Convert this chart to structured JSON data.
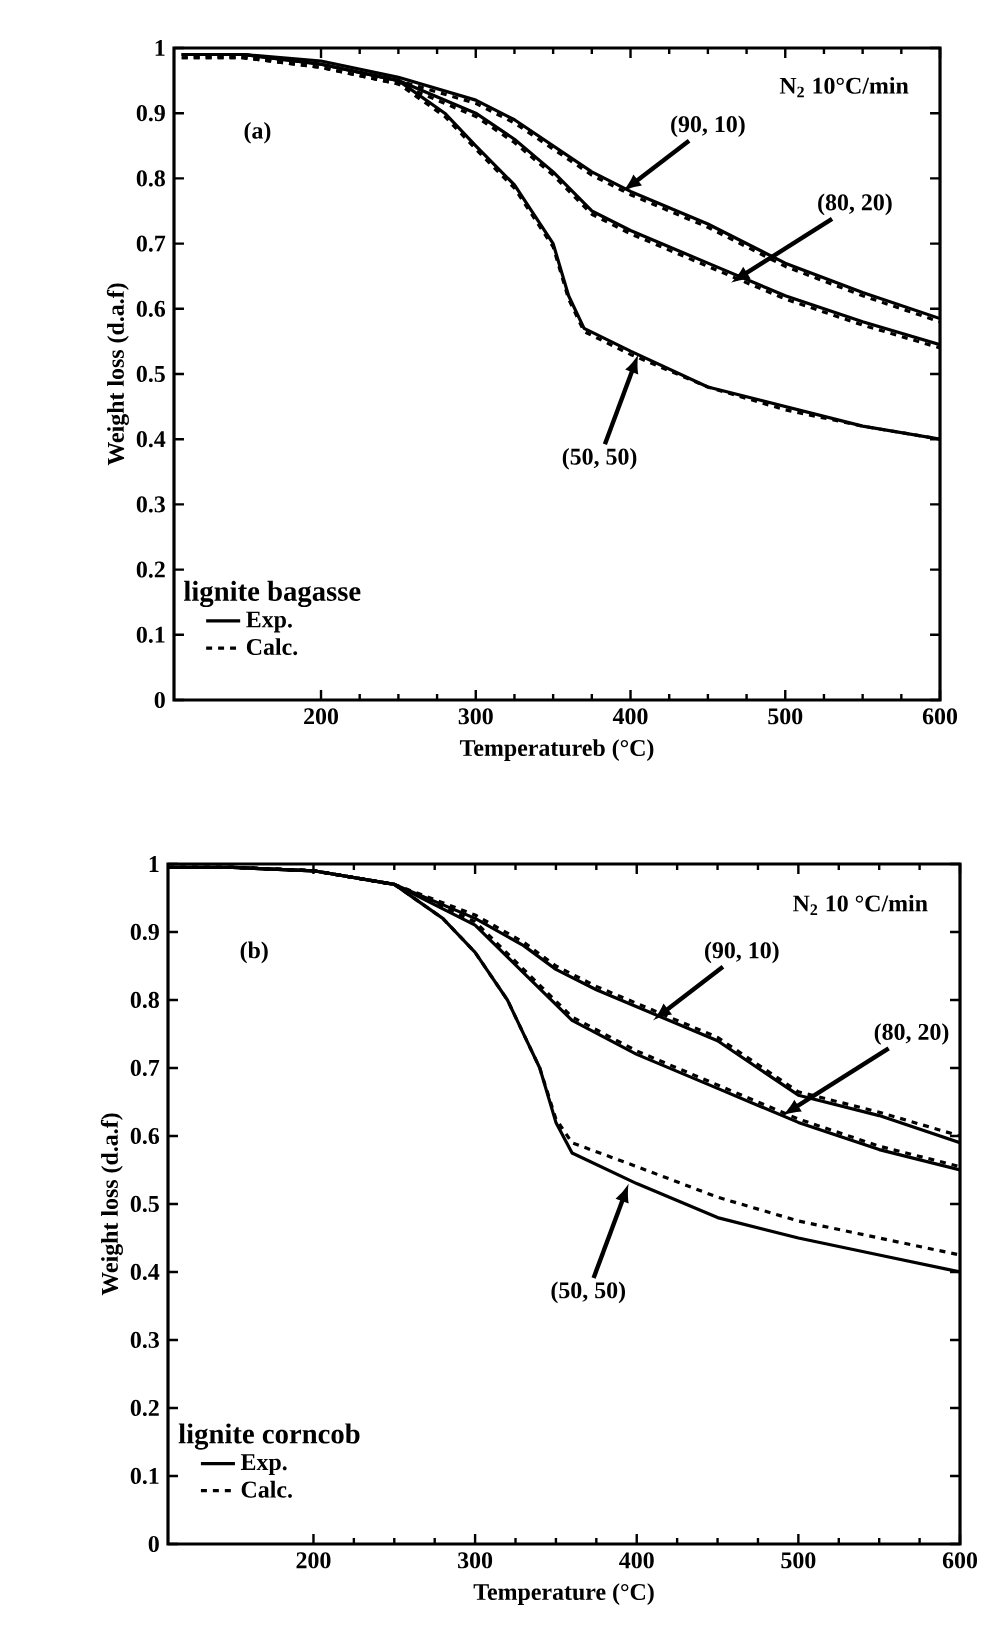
{
  "chart_data": [
    {
      "type": "line",
      "xlabel": "Temperatureb (°C)",
      "ylabel": "Weight loss (d.a.f)",
      "legend_title": "lignite bagasse",
      "legend": "bottom left",
      "xlim": [
        105,
        600
      ],
      "ylim": [
        0,
        1
      ],
      "xticks": [
        200,
        300,
        400,
        500,
        600
      ],
      "yticks": [
        0,
        0.1,
        0.2,
        0.3,
        0.4,
        0.5,
        0.6,
        0.7,
        0.8,
        0.9,
        1
      ],
      "annotations": [
        "(a)",
        "N$_{2}$  10°C/min",
        {
          "text": "(90, 10)",
          "x": 395,
          "y": 0.78
        },
        {
          "text": "(80, 20)",
          "x": 465,
          "y": 0.64
        },
        {
          "text": "(50, 50)",
          "x": 405,
          "y": 0.53
        }
      ],
      "series": [
        {
          "name": "Exp.",
          "color": "#000000",
          "line_style": "solid",
          "x": [
            110,
            150,
            200,
            250,
            300,
            325,
            350,
            375,
            400,
            450,
            500,
            550,
            600
          ],
          "values": [
            0.99,
            0.99,
            0.98,
            0.955,
            0.92,
            0.89,
            0.85,
            0.81,
            0.78,
            0.73,
            0.67,
            0.625,
            0.585
          ]
        },
        {
          "name": "Calc.",
          "color": "#000000",
          "line_style": "dashed",
          "x": [
            110,
            150,
            200,
            250,
            300,
            325,
            350,
            375,
            400,
            450,
            500,
            550,
            600
          ],
          "values": [
            0.99,
            0.985,
            0.975,
            0.95,
            0.915,
            0.885,
            0.845,
            0.805,
            0.775,
            0.725,
            0.665,
            0.62,
            0.58
          ]
        },
        {
          "color": "#000000",
          "line_style": "solid",
          "x": [
            110,
            150,
            200,
            250,
            300,
            325,
            350,
            375,
            400,
            450,
            500,
            550,
            600
          ],
          "values": [
            0.99,
            0.99,
            0.975,
            0.95,
            0.9,
            0.86,
            0.81,
            0.75,
            0.72,
            0.67,
            0.62,
            0.58,
            0.545
          ]
        },
        {
          "color": "#000000",
          "line_style": "dashed",
          "x": [
            110,
            150,
            200,
            250,
            300,
            325,
            350,
            375,
            400,
            450,
            500,
            550,
            600
          ],
          "values": [
            0.985,
            0.985,
            0.97,
            0.945,
            0.895,
            0.855,
            0.805,
            0.745,
            0.715,
            0.665,
            0.615,
            0.575,
            0.54
          ]
        },
        {
          "color": "#000000",
          "line_style": "solid",
          "x": [
            110,
            150,
            200,
            250,
            280,
            300,
            325,
            350,
            360,
            370,
            400,
            450,
            500,
            550,
            600
          ],
          "values": [
            0.99,
            0.99,
            0.975,
            0.95,
            0.9,
            0.85,
            0.79,
            0.7,
            0.62,
            0.57,
            0.535,
            0.48,
            0.45,
            0.42,
            0.4
          ]
        },
        {
          "color": "#000000",
          "line_style": "dashed",
          "x": [
            110,
            150,
            200,
            250,
            280,
            300,
            325,
            350,
            360,
            370,
            400,
            450,
            500,
            550,
            600
          ],
          "values": [
            0.985,
            0.985,
            0.97,
            0.945,
            0.895,
            0.845,
            0.785,
            0.695,
            0.615,
            0.565,
            0.53,
            0.48,
            0.445,
            0.42,
            0.4
          ]
        }
      ]
    },
    {
      "type": "line",
      "xlabel": "Temperature (°C)",
      "ylabel": "Weight loss (d.a.f)",
      "legend_title": "lignite corncob",
      "legend": "bottom left",
      "xlim": [
        110,
        600
      ],
      "ylim": [
        0,
        1
      ],
      "xticks": [
        200,
        300,
        400,
        500,
        600
      ],
      "yticks": [
        0,
        0.1,
        0.2,
        0.3,
        0.4,
        0.5,
        0.6,
        0.7,
        0.8,
        0.9,
        1
      ],
      "annotations": [
        "(b)",
        "N$_{2}$  10 °C/min",
        {
          "text": "(90, 10)",
          "x": 410,
          "y": 0.77
        },
        {
          "text": "(80, 20)",
          "x": 490,
          "y": 0.63
        },
        {
          "text": "(50, 50)",
          "x": 395,
          "y": 0.53
        }
      ],
      "series": [
        {
          "name": "Exp.",
          "color": "#000000",
          "line_style": "solid",
          "x": [
            110,
            150,
            200,
            250,
            300,
            330,
            350,
            375,
            400,
            450,
            500,
            550,
            600
          ],
          "values": [
            0.995,
            0.995,
            0.99,
            0.97,
            0.92,
            0.88,
            0.845,
            0.815,
            0.79,
            0.74,
            0.66,
            0.63,
            0.59
          ]
        },
        {
          "name": "Calc.",
          "color": "#000000",
          "line_style": "dashed",
          "x": [
            110,
            150,
            200,
            250,
            300,
            330,
            350,
            375,
            400,
            450,
            500,
            550,
            600
          ],
          "values": [
            0.995,
            0.995,
            0.99,
            0.97,
            0.925,
            0.885,
            0.85,
            0.82,
            0.795,
            0.745,
            0.665,
            0.635,
            0.6
          ]
        },
        {
          "color": "#000000",
          "line_style": "solid",
          "x": [
            110,
            150,
            200,
            250,
            300,
            330,
            360,
            400,
            450,
            500,
            550,
            600
          ],
          "values": [
            0.995,
            0.995,
            0.99,
            0.97,
            0.91,
            0.84,
            0.77,
            0.72,
            0.67,
            0.62,
            0.58,
            0.55
          ]
        },
        {
          "color": "#000000",
          "line_style": "dashed",
          "x": [
            110,
            150,
            200,
            250,
            300,
            330,
            360,
            400,
            450,
            500,
            550,
            600
          ],
          "values": [
            0.995,
            0.995,
            0.99,
            0.97,
            0.915,
            0.845,
            0.775,
            0.725,
            0.675,
            0.625,
            0.585,
            0.555
          ]
        },
        {
          "color": "#000000",
          "line_style": "solid",
          "x": [
            110,
            150,
            200,
            250,
            280,
            300,
            320,
            340,
            350,
            360,
            400,
            450,
            500,
            550,
            600
          ],
          "values": [
            0.995,
            0.995,
            0.99,
            0.97,
            0.92,
            0.87,
            0.8,
            0.7,
            0.62,
            0.575,
            0.53,
            0.48,
            0.45,
            0.425,
            0.4
          ]
        },
        {
          "color": "#000000",
          "line_style": "dashed",
          "x": [
            110,
            150,
            200,
            250,
            280,
            300,
            320,
            340,
            350,
            360,
            400,
            450,
            500,
            550,
            600
          ],
          "values": [
            0.995,
            0.995,
            0.99,
            0.97,
            0.92,
            0.87,
            0.8,
            0.7,
            0.625,
            0.59,
            0.555,
            0.51,
            0.475,
            0.45,
            0.425
          ]
        }
      ]
    }
  ]
}
